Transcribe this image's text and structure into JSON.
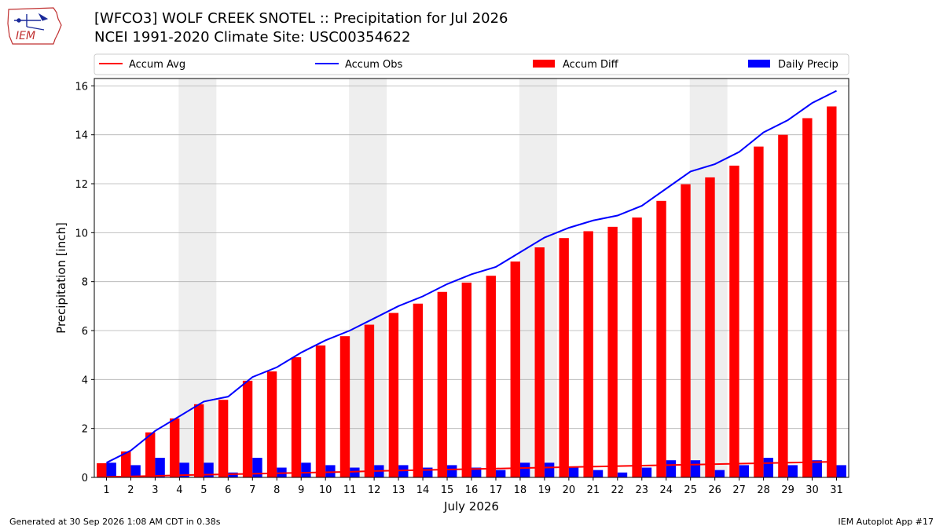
{
  "header": {
    "logo_text": "IEM",
    "title_line1": "[WFCO3] WOLF CREEK SNOTEL :: Precipitation for Jul 2026",
    "title_line2": "NCEI 1991-2020 Climate Site: USC00354622"
  },
  "footer": {
    "left": "Generated at 30 Sep 2026 1:08 AM CDT in 0.38s",
    "right": "IEM Autoplot App #17"
  },
  "chart_data": {
    "type": "bar",
    "xlabel": "July 2026",
    "ylabel": "Precipitation [inch]",
    "ylim": [
      0,
      16.3
    ],
    "yticks": [
      0,
      2,
      4,
      6,
      8,
      10,
      12,
      14,
      16
    ],
    "grid": true,
    "legend": "top, horizontal",
    "categories": [
      "1",
      "2",
      "3",
      "4",
      "5",
      "6",
      "7",
      "8",
      "9",
      "10",
      "11",
      "12",
      "13",
      "14",
      "15",
      "16",
      "17",
      "18",
      "19",
      "20",
      "21",
      "22",
      "23",
      "24",
      "25",
      "26",
      "27",
      "28",
      "29",
      "30",
      "31"
    ],
    "shaded_days": [
      [
        "4",
        "5"
      ],
      [
        "11",
        "12"
      ],
      [
        "18",
        "19"
      ],
      [
        "25",
        "26"
      ]
    ],
    "series": [
      {
        "name": "Accum Avg",
        "kind": "line",
        "color": "#ff0000",
        "values": [
          0.02,
          0.04,
          0.06,
          0.09,
          0.11,
          0.13,
          0.15,
          0.17,
          0.19,
          0.21,
          0.23,
          0.26,
          0.28,
          0.3,
          0.32,
          0.34,
          0.36,
          0.38,
          0.4,
          0.42,
          0.44,
          0.46,
          0.48,
          0.5,
          0.52,
          0.54,
          0.56,
          0.58,
          0.6,
          0.62,
          0.64
        ]
      },
      {
        "name": "Accum Obs",
        "kind": "line",
        "color": "#0000ff",
        "values": [
          0.6,
          1.1,
          1.9,
          2.5,
          3.1,
          3.3,
          4.1,
          4.5,
          5.1,
          5.6,
          6.0,
          6.5,
          7.0,
          7.4,
          7.9,
          8.3,
          8.6,
          9.2,
          9.8,
          10.2,
          10.5,
          10.7,
          11.1,
          11.8,
          12.5,
          12.8,
          13.3,
          14.1,
          14.6,
          15.3,
          15.8
        ]
      },
      {
        "name": "Accum Diff",
        "kind": "bar",
        "color": "#ff0000",
        "values": [
          0.58,
          1.06,
          1.84,
          2.41,
          2.99,
          3.17,
          3.95,
          4.33,
          4.91,
          5.39,
          5.77,
          6.24,
          6.72,
          7.1,
          7.58,
          7.96,
          8.24,
          8.82,
          9.4,
          9.78,
          10.06,
          10.24,
          10.62,
          11.3,
          11.98,
          12.26,
          12.74,
          13.52,
          14.0,
          14.68,
          15.16
        ]
      },
      {
        "name": "Daily Precip",
        "kind": "bar",
        "color": "#0000ff",
        "values": [
          0.6,
          0.5,
          0.8,
          0.6,
          0.6,
          0.2,
          0.8,
          0.4,
          0.6,
          0.5,
          0.4,
          0.5,
          0.5,
          0.4,
          0.5,
          0.4,
          0.3,
          0.6,
          0.6,
          0.4,
          0.3,
          0.2,
          0.4,
          0.7,
          0.7,
          0.3,
          0.5,
          0.8,
          0.5,
          0.7,
          0.5
        ]
      }
    ]
  }
}
